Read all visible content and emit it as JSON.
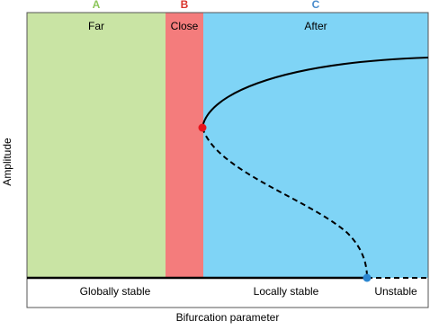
{
  "regions": [
    {
      "letter": "A",
      "name": "Far"
    },
    {
      "letter": "B",
      "name": "Close"
    },
    {
      "letter": "C",
      "name": "After"
    }
  ],
  "stability_labels": [
    "Globally stable",
    "Locally stable",
    "Unstable"
  ],
  "x_axis_label": "Bifurcation parameter",
  "y_axis_label": "Amplitude"
}
